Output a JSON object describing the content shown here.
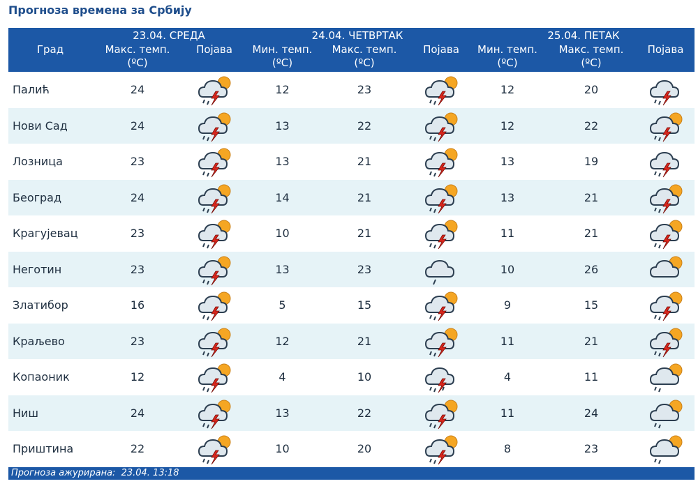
{
  "title": "Прогноза времена за Србију",
  "header": {
    "city_label": "Град",
    "days": [
      {
        "label": "23.04. СРЕДА"
      },
      {
        "label": "24.04. ЧЕТВРТАК"
      },
      {
        "label": "25.04. ПЕТАК"
      }
    ],
    "max_line1": "Макс. темп.",
    "min_line1": "Мин. темп.",
    "temp_unit": "(ºC)",
    "phenomenon": "Појава"
  },
  "rows": [
    {
      "city": "Палић",
      "d1_max": "24",
      "d1_icon": "storm-sun",
      "d2_min": "12",
      "d2_max": "23",
      "d2_icon": "storm-sun",
      "d3_min": "12",
      "d3_max": "20",
      "d3_icon": "storm"
    },
    {
      "city": "Нови Сад",
      "d1_max": "24",
      "d1_icon": "storm-sun",
      "d2_min": "13",
      "d2_max": "22",
      "d2_icon": "storm-sun",
      "d3_min": "12",
      "d3_max": "22",
      "d3_icon": "storm-sun"
    },
    {
      "city": "Лозница",
      "d1_max": "23",
      "d1_icon": "storm-sun",
      "d2_min": "13",
      "d2_max": "21",
      "d2_icon": "storm-sun",
      "d3_min": "13",
      "d3_max": "19",
      "d3_icon": "storm"
    },
    {
      "city": "Београд",
      "d1_max": "24",
      "d1_icon": "storm-sun",
      "d2_min": "14",
      "d2_max": "21",
      "d2_icon": "storm-sun",
      "d3_min": "13",
      "d3_max": "21",
      "d3_icon": "storm-sun"
    },
    {
      "city": "Крагујевац",
      "d1_max": "23",
      "d1_icon": "storm-sun",
      "d2_min": "10",
      "d2_max": "21",
      "d2_icon": "storm-sun",
      "d3_min": "11",
      "d3_max": "21",
      "d3_icon": "storm-sun"
    },
    {
      "city": "Неготин",
      "d1_max": "23",
      "d1_icon": "storm-sun",
      "d2_min": "13",
      "d2_max": "23",
      "d2_icon": "cloud-drop",
      "d3_min": "10",
      "d3_max": "26",
      "d3_icon": "cloud-sun"
    },
    {
      "city": "Златибор",
      "d1_max": "16",
      "d1_icon": "storm-sun",
      "d2_min": "5",
      "d2_max": "15",
      "d2_icon": "storm-sun",
      "d3_min": "9",
      "d3_max": "15",
      "d3_icon": "storm-sun"
    },
    {
      "city": "Краљево",
      "d1_max": "23",
      "d1_icon": "storm-sun",
      "d2_min": "12",
      "d2_max": "21",
      "d2_icon": "storm-sun",
      "d3_min": "11",
      "d3_max": "21",
      "d3_icon": "storm-sun"
    },
    {
      "city": "Копаоник",
      "d1_max": "12",
      "d1_icon": "storm-sun",
      "d2_min": "4",
      "d2_max": "10",
      "d2_icon": "storm-rain",
      "d3_min": "4",
      "d3_max": "11",
      "d3_icon": "rain-sun"
    },
    {
      "city": "Ниш",
      "d1_max": "24",
      "d1_icon": "storm-sun",
      "d2_min": "13",
      "d2_max": "22",
      "d2_icon": "storm-sun",
      "d3_min": "11",
      "d3_max": "24",
      "d3_icon": "rain-sun"
    },
    {
      "city": "Приштина",
      "d1_max": "22",
      "d1_icon": "storm-sun",
      "d2_min": "10",
      "d2_max": "20",
      "d2_icon": "storm-sun",
      "d3_min": "8",
      "d3_max": "23",
      "d3_icon": "rain-sun"
    }
  ],
  "footer": {
    "label": "Прогноза ажурирана:",
    "value": "23.04. 13:18"
  },
  "colors": {
    "header_bg": "#1c58a6",
    "row_alt": "#e6f3f7",
    "title": "#1f4e8c",
    "sun": "#f5a623",
    "lightning": "#d9261c",
    "cloud": "#dfe8ee"
  }
}
